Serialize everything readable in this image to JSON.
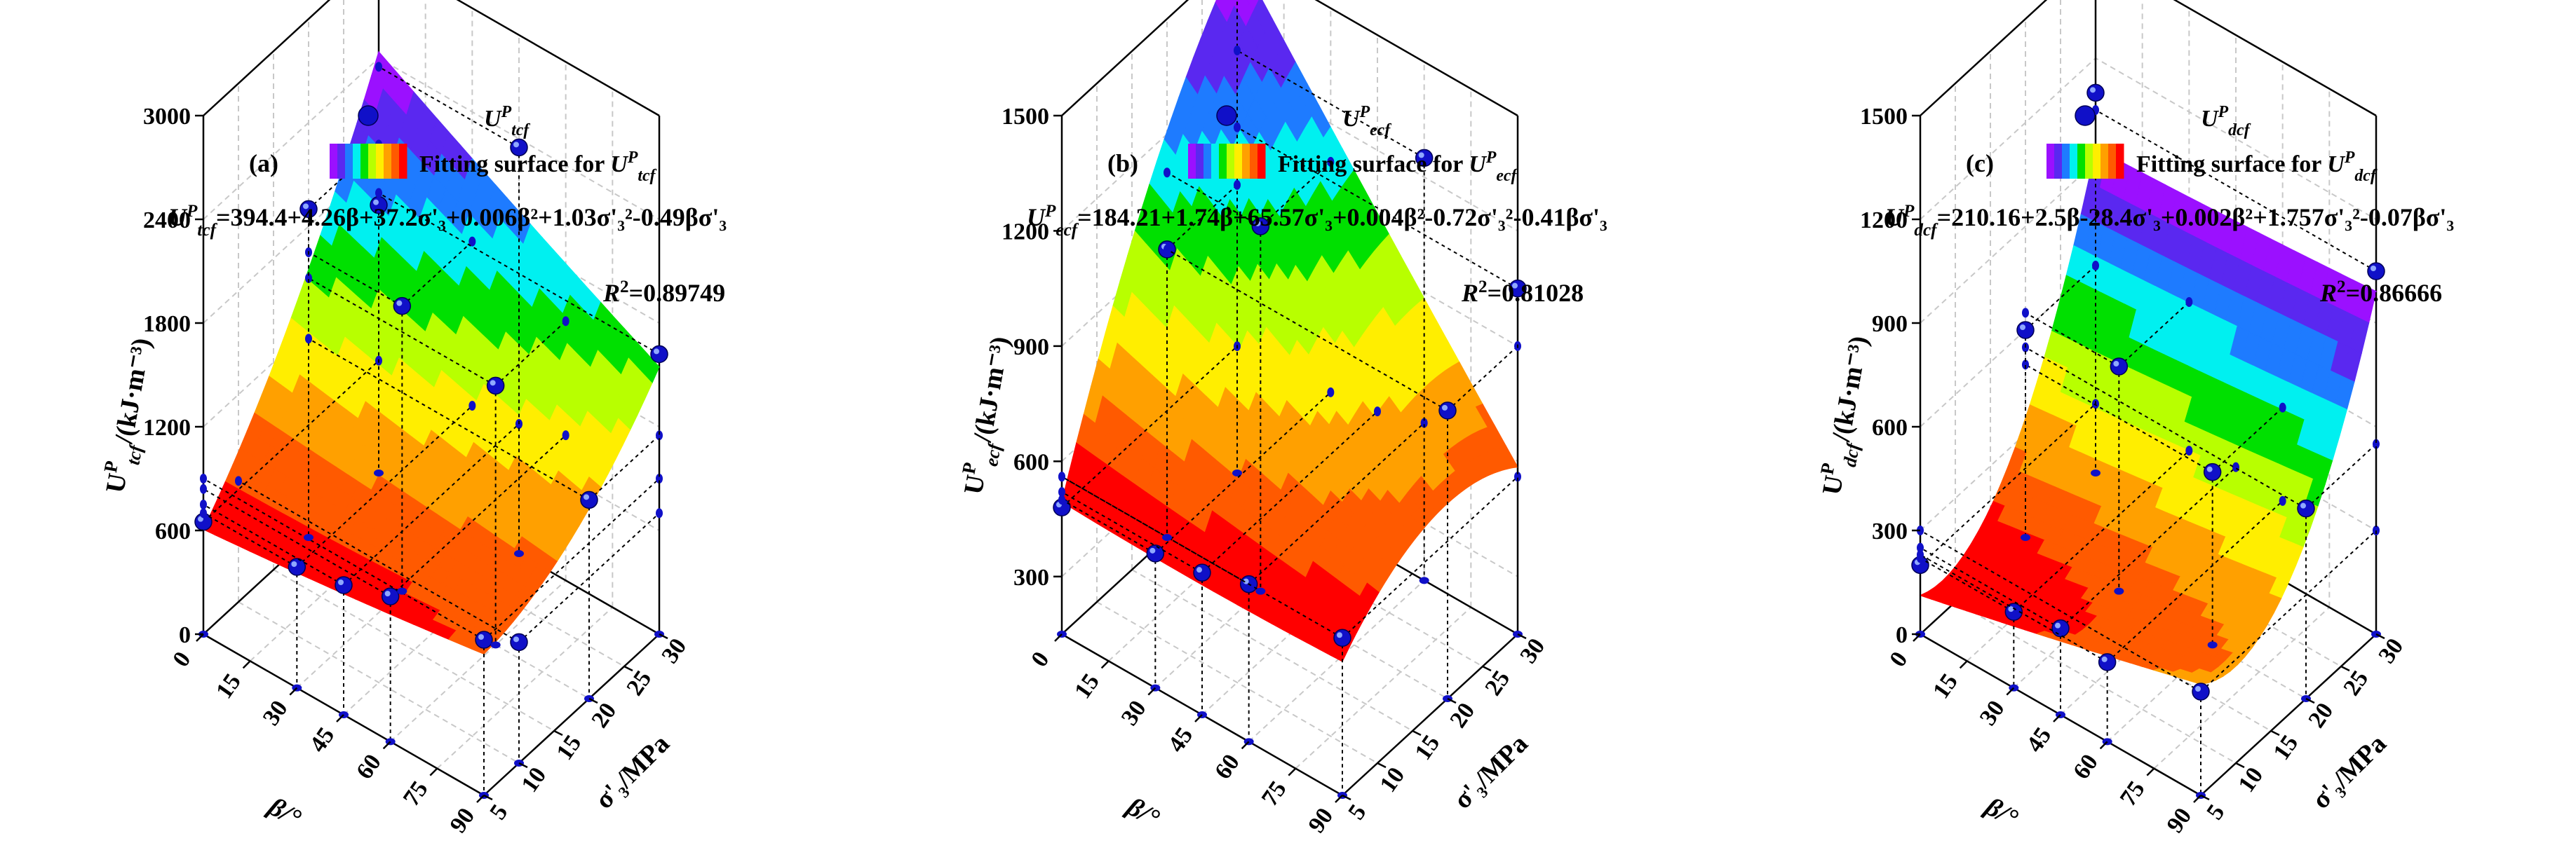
{
  "colors": {
    "band_colors": [
      "#9b10ff",
      "#5a28f0",
      "#1e7bff",
      "#00f0f0",
      "#00e000",
      "#b8ff00",
      "#ffee00",
      "#ffa000",
      "#ff5a00",
      "#ff0000"
    ],
    "point_color": "#1010c8",
    "axis_color": "#000000",
    "grid_color": "#c8c8c8"
  },
  "chart_data": [
    {
      "type": "surface3d",
      "panel_tag": "(a)",
      "legend_marker_label": "U",
      "legend_marker_sup": "P",
      "legend_marker_sub": "tcf",
      "legend_surface_label": "Fitting surface for ",
      "legend_surface_var": "U",
      "legend_surface_sup": "P",
      "legend_surface_sub": "tcf",
      "equation_lhs": "U",
      "equation_lhs_sup": "P",
      "equation_lhs_sub": "tcf",
      "equation_rhs": "=394.4+4.26β+37.2σ'₃+0.006β²+1.03σ'₃²-0.49βσ'₃",
      "r2_label": "R",
      "r2_value": "=0.89749",
      "z_label": "U",
      "z_label_sup": "P",
      "z_label_sub": "tcf",
      "z_label_unit": "/(kJ·m⁻³)",
      "x_label": "β/°",
      "y_label": "σ'₃/MPa",
      "x_ticks": [
        "0",
        "15",
        "30",
        "45",
        "60",
        "75",
        "90"
      ],
      "y_ticks": [
        "5",
        "10",
        "15",
        "20",
        "25",
        "30"
      ],
      "z_ticks": [
        "0",
        "600",
        "1200",
        "1800",
        "2400",
        "3000"
      ],
      "xlim": [
        0,
        90
      ],
      "ylim": [
        5,
        30
      ],
      "zlim": [
        0,
        3000
      ],
      "coef": [
        394.4,
        4.26,
        37.2,
        0.006,
        1.03,
        -0.49
      ],
      "points": [
        {
          "x": 0,
          "y": 5,
          "z": 650
        },
        {
          "x": 0,
          "y": 30,
          "z": 1550
        },
        {
          "x": 30,
          "y": 5,
          "z": 700
        },
        {
          "x": 45,
          "y": 5,
          "z": 750
        },
        {
          "x": 60,
          "y": 5,
          "z": 840
        },
        {
          "x": 90,
          "y": 5,
          "z": 900
        },
        {
          "x": 30,
          "y": 20,
          "z": 1650
        },
        {
          "x": 60,
          "y": 20,
          "z": 1500
        },
        {
          "x": 0,
          "y": 20,
          "z": 1900
        },
        {
          "x": 90,
          "y": 20,
          "z": 1150
        },
        {
          "x": 90,
          "y": 30,
          "z": 1620
        },
        {
          "x": 45,
          "y": 30,
          "z": 2350
        },
        {
          "x": 90,
          "y": 10,
          "z": 700
        }
      ]
    },
    {
      "type": "surface3d",
      "panel_tag": "(b)",
      "legend_marker_label": "U",
      "legend_marker_sup": "P",
      "legend_marker_sub": "ecf",
      "legend_surface_label": "Fitting surface for ",
      "legend_surface_var": "U",
      "legend_surface_sup": "P",
      "legend_surface_sub": "ecf",
      "equation_lhs": "U",
      "equation_lhs_sup": "P",
      "equation_lhs_sub": "ecf",
      "equation_rhs": "=184.21+1.74β+65.57σ'₃+0.004β²-0.72σ'₃²-0.41βσ'₃",
      "r2_label": "R",
      "r2_value": "=0.81028",
      "z_label": "U",
      "z_label_sup": "P",
      "z_label_sub": "ecf",
      "z_label_unit": "/(kJ·m⁻³)",
      "x_label": "β/°",
      "y_label": "σ'₃/MPa",
      "x_ticks": [
        "0",
        "15",
        "30",
        "45",
        "60",
        "75",
        "90"
      ],
      "y_ticks": [
        "5",
        "10",
        "15",
        "20",
        "25",
        "30"
      ],
      "z_ticks": [
        "300",
        "600",
        "900",
        "1200",
        "1500"
      ],
      "xlim": [
        0,
        90
      ],
      "ylim": [
        5,
        30
      ],
      "zlim": [
        150,
        1500
      ],
      "coef": [
        184.21,
        1.74,
        65.57,
        0.004,
        -0.72,
        -0.41
      ],
      "points": [
        {
          "x": 0,
          "y": 5,
          "z": 480
        },
        {
          "x": 0,
          "y": 30,
          "z": 1450
        },
        {
          "x": 30,
          "y": 5,
          "z": 500
        },
        {
          "x": 45,
          "y": 5,
          "z": 520
        },
        {
          "x": 60,
          "y": 5,
          "z": 560
        },
        {
          "x": 90,
          "y": 5,
          "z": 560
        },
        {
          "x": 30,
          "y": 20,
          "z": 1100
        },
        {
          "x": 0,
          "y": 20,
          "z": 900
        },
        {
          "x": 90,
          "y": 20,
          "z": 900
        },
        {
          "x": 90,
          "y": 30,
          "z": 1050
        },
        {
          "x": 60,
          "y": 30,
          "z": 1250
        }
      ]
    },
    {
      "type": "surface3d",
      "panel_tag": "(c)",
      "legend_marker_label": "U",
      "legend_marker_sup": "P",
      "legend_marker_sub": "dcf",
      "legend_surface_label": "Fitting surface for ",
      "legend_surface_var": "U",
      "legend_surface_sup": "P",
      "legend_surface_sub": "dcf",
      "equation_lhs": "U",
      "equation_lhs_sup": "P",
      "equation_lhs_sub": "dcf",
      "equation_rhs": "=210.16+2.5β-28.4σ'₃+0.002β²+1.757σ'₃²-0.07βσ'₃",
      "r2_label": "R",
      "r2_value": "=0.86666",
      "z_label": "U",
      "z_label_sup": "P",
      "z_label_sub": "dcf",
      "z_label_unit": "/(kJ·m⁻³)",
      "x_label": "β/°",
      "y_label": "σ'₃/MPa",
      "x_ticks": [
        "0",
        "15",
        "30",
        "45",
        "60",
        "75",
        "90"
      ],
      "y_ticks": [
        "5",
        "10",
        "15",
        "20",
        "25",
        "30"
      ],
      "z_ticks": [
        "0",
        "300",
        "600",
        "900",
        "1200",
        "1500"
      ],
      "xlim": [
        0,
        90
      ],
      "ylim": [
        5,
        30
      ],
      "zlim": [
        0,
        1500
      ],
      "coef": [
        210.16,
        2.5,
        -28.4,
        0.002,
        1.757,
        -0.07
      ],
      "points": [
        {
          "x": 0,
          "y": 5,
          "z": 200
        },
        {
          "x": 30,
          "y": 5,
          "z": 220
        },
        {
          "x": 45,
          "y": 5,
          "z": 250
        },
        {
          "x": 60,
          "y": 5,
          "z": 230
        },
        {
          "x": 90,
          "y": 5,
          "z": 300
        },
        {
          "x": 30,
          "y": 20,
          "z": 650
        },
        {
          "x": 60,
          "y": 20,
          "z": 500
        },
        {
          "x": 90,
          "y": 20,
          "z": 550
        },
        {
          "x": 0,
          "y": 30,
          "z": 1100
        },
        {
          "x": 90,
          "y": 30,
          "z": 1050
        },
        {
          "x": 0,
          "y": 20,
          "z": 600
        }
      ]
    }
  ]
}
